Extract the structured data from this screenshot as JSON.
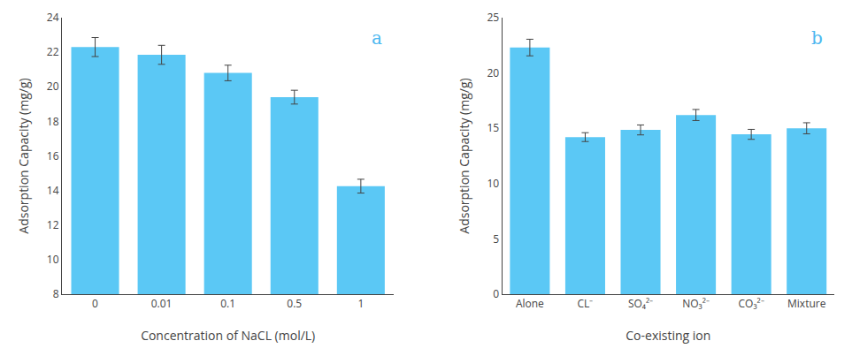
{
  "chart_data": [
    {
      "type": "bar",
      "categories": [
        "0",
        "0.01",
        "0.1",
        "0.5",
        "1"
      ],
      "values": [
        22.3,
        21.85,
        20.8,
        19.4,
        14.25
      ],
      "errors": [
        0.55,
        0.55,
        0.45,
        0.4,
        0.4
      ],
      "x_label": "Concentration of NaCL (mol/L)",
      "y_label": "Adsorption Capacity (mg/g)",
      "ylim": [
        8,
        24
      ],
      "yticks": [
        8,
        10,
        12,
        14,
        16,
        18,
        20,
        22,
        24
      ],
      "color": "#5BC8F5",
      "grid": false,
      "annotations": [
        {
          "text": "a",
          "color": "#4db8f0"
        }
      ]
    },
    {
      "type": "bar",
      "categories": [
        "Alone",
        "CL⁻",
        "SO₄²⁻",
        "NO₃²⁻",
        "CO₃²⁻",
        "Mixture"
      ],
      "values": [
        22.3,
        14.2,
        14.85,
        16.2,
        14.45,
        15.0
      ],
      "errors": [
        0.75,
        0.4,
        0.45,
        0.5,
        0.45,
        0.5
      ],
      "x_label": "Co-existing ion",
      "y_label": "Adsorption Capacity (mg/g)",
      "ylim": [
        0,
        25
      ],
      "yticks": [
        0,
        5,
        10,
        15,
        20,
        25
      ],
      "color": "#5BC8F5",
      "grid": false,
      "annotations": [
        {
          "text": "b",
          "color": "#4db8f0"
        }
      ]
    }
  ]
}
